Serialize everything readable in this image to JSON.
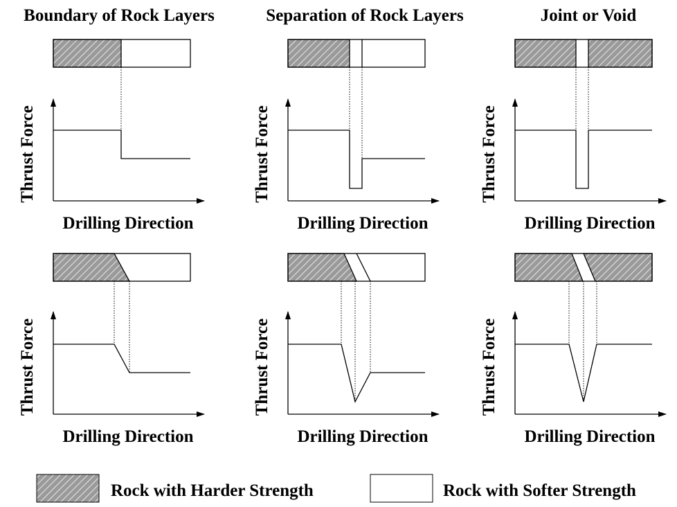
{
  "columns": [
    {
      "title": "Boundary of Rock Layers"
    },
    {
      "title": "Separation of Rock Layers"
    },
    {
      "title": "Joint or Void"
    }
  ],
  "panels": [
    {
      "y_label": "Thrust Force",
      "x_label": "Drilling Direction"
    },
    {
      "y_label": "Thrust Force",
      "x_label": "Drilling Direction"
    },
    {
      "y_label": "Thrust Force",
      "x_label": "Drilling Direction"
    },
    {
      "y_label": "Thrust Force",
      "x_label": "Drilling Direction"
    },
    {
      "y_label": "Thrust Force",
      "x_label": "Drilling Direction"
    },
    {
      "y_label": "Thrust Force",
      "x_label": "Drilling Direction"
    }
  ],
  "legend": [
    {
      "label": "Rock with Harder Strength"
    },
    {
      "label": "Rock with Softer Strength"
    }
  ]
}
